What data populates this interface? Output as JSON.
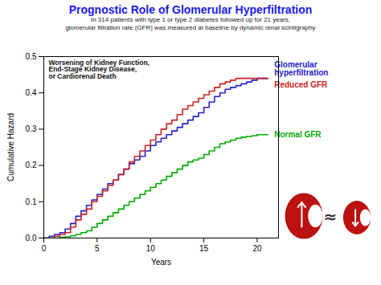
{
  "chart_data": {
    "type": "line",
    "title": "Prognostic Role of Glomerular Hyperfiltration",
    "subtitle": [
      "In 314 patients with type 1 or type 2 diabetes followed up for 21 years,",
      "glomerular filtration rate (GFR) was measured at baseline by dynamic renal scintigraphy"
    ],
    "xlabel": "Years",
    "ylabel": "Cumulative Hazard",
    "xlim": [
      0,
      22
    ],
    "ylim": [
      0,
      0.5
    ],
    "xticks": [
      0,
      5,
      10,
      15,
      20
    ],
    "yticks": [
      0.0,
      0.1,
      0.2,
      0.3,
      0.4,
      0.5
    ],
    "grid": false,
    "line_style": "step",
    "annotations": [
      {
        "text": "Worsening of Kidney Function,\nEnd-Stage Kidney Disease,\nor Cardiorenal Death"
      },
      {
        "text": "≈"
      }
    ],
    "x": [
      0,
      0.5,
      1,
      1.5,
      2,
      2.5,
      3,
      3.5,
      4,
      4.5,
      5,
      5.5,
      6,
      6.5,
      7,
      7.5,
      8,
      8.5,
      9,
      9.5,
      10,
      10.5,
      11,
      11.5,
      12,
      12.5,
      13,
      13.5,
      14,
      14.5,
      15,
      15.5,
      16,
      16.5,
      17,
      17.5,
      18,
      18.5,
      19,
      19.5,
      20,
      20.5,
      21
    ],
    "series": [
      {
        "name": "Glomerular\nhyperfiltration",
        "color": "#2222cc",
        "values": [
          0,
          0.005,
          0.01,
          0.015,
          0.025,
          0.04,
          0.06,
          0.075,
          0.09,
          0.105,
          0.12,
          0.135,
          0.15,
          0.16,
          0.175,
          0.19,
          0.205,
          0.215,
          0.225,
          0.24,
          0.255,
          0.265,
          0.275,
          0.285,
          0.295,
          0.305,
          0.315,
          0.325,
          0.335,
          0.345,
          0.36,
          0.375,
          0.39,
          0.4,
          0.41,
          0.415,
          0.42,
          0.425,
          0.43,
          0.435,
          0.44,
          0.44,
          0.44
        ]
      },
      {
        "name": "Reduced GFR",
        "color": "#cc2222",
        "values": [
          0,
          0.0,
          0.005,
          0.01,
          0.015,
          0.03,
          0.05,
          0.065,
          0.08,
          0.1,
          0.115,
          0.13,
          0.145,
          0.16,
          0.175,
          0.19,
          0.21,
          0.225,
          0.24,
          0.255,
          0.27,
          0.285,
          0.3,
          0.315,
          0.325,
          0.34,
          0.355,
          0.365,
          0.375,
          0.385,
          0.395,
          0.405,
          0.415,
          0.425,
          0.43,
          0.435,
          0.44,
          0.44,
          0.44,
          0.44,
          0.44,
          0.44,
          0.44
        ]
      },
      {
        "name": "Normal GFR",
        "color": "#00aa00",
        "values": [
          0,
          0.0,
          0.0,
          0.002,
          0.004,
          0.006,
          0.01,
          0.015,
          0.02,
          0.03,
          0.04,
          0.05,
          0.06,
          0.07,
          0.08,
          0.09,
          0.1,
          0.11,
          0.12,
          0.13,
          0.14,
          0.15,
          0.16,
          0.17,
          0.18,
          0.19,
          0.2,
          0.21,
          0.215,
          0.22,
          0.23,
          0.24,
          0.25,
          0.26,
          0.265,
          0.27,
          0.275,
          0.278,
          0.28,
          0.282,
          0.285,
          0.285,
          0.285
        ]
      }
    ]
  }
}
